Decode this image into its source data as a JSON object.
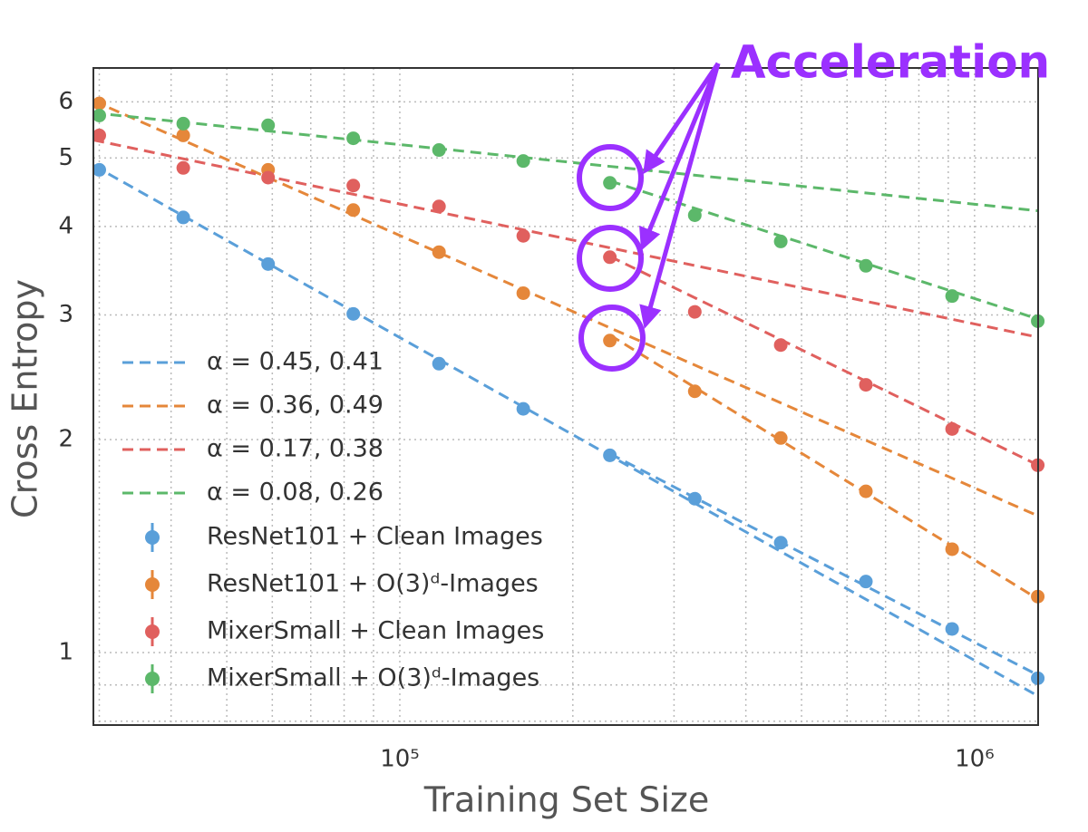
{
  "chart_data": {
    "type": "scatter",
    "xlabel": "Training Set Size",
    "ylabel": "Cross Entropy",
    "xscale": "log",
    "yscale": "log",
    "grid": true,
    "xlim": [
      29300,
      1290000
    ],
    "ylim": [
      0.79,
      6.7
    ],
    "xticks": [
      {
        "value": 100000,
        "label": "10⁵"
      },
      {
        "value": 1000000,
        "label": "10⁶"
      }
    ],
    "xminor": [
      30000,
      40000,
      50000,
      60000,
      70000,
      80000,
      90000,
      200000,
      300000,
      400000,
      500000,
      600000,
      700000,
      800000,
      900000
    ],
    "yticks": [
      1,
      2,
      3,
      4,
      5,
      6
    ],
    "yminor": [
      0.8,
      0.9
    ],
    "x": [
      30000,
      42000,
      59000,
      83000,
      117000,
      164000,
      232000,
      326000,
      460000,
      647000,
      914000,
      1288000
    ],
    "series": [
      {
        "name": "ResNet101 + Clean Images",
        "color": "#5a9fd9",
        "values": [
          4.81,
          4.12,
          3.54,
          3.01,
          2.56,
          2.21,
          1.9,
          1.65,
          1.43,
          1.26,
          1.08,
          0.92
        ]
      },
      {
        "name": "ResNet101 + O(3)ᵈ-Images",
        "color": "#e5873a",
        "values": [
          5.97,
          5.38,
          4.81,
          4.22,
          3.68,
          3.22,
          2.76,
          2.34,
          2.01,
          1.69,
          1.4,
          1.2
        ]
      },
      {
        "name": "MixerSmall + Clean Images",
        "color": "#e0605e",
        "values": [
          5.38,
          4.84,
          4.69,
          4.57,
          4.27,
          3.88,
          3.62,
          3.03,
          2.72,
          2.39,
          2.07,
          1.84
        ]
      },
      {
        "name": "MixerSmall + O(3)ᵈ-Images",
        "color": "#5cb86a",
        "values": [
          5.74,
          5.59,
          5.56,
          5.33,
          5.13,
          4.95,
          4.61,
          4.15,
          3.81,
          3.52,
          3.19,
          2.94
        ]
      }
    ],
    "fits": [
      {
        "label": "α = 0.45, 0.41",
        "color": "#5a9fd9",
        "lines": [
          {
            "x": [
              29300,
              1290000
            ],
            "y": [
              4.88,
              0.868
            ]
          },
          {
            "x": [
              232000,
              1290000
            ],
            "y": [
              1.91,
              0.929
            ]
          }
        ]
      },
      {
        "label": "α = 0.36, 0.49",
        "color": "#e5873a",
        "lines": [
          {
            "x": [
              29300,
              1290000
            ],
            "y": [
              6.02,
              1.56
            ]
          },
          {
            "x": [
              232000,
              1290000
            ],
            "y": [
              2.81,
              1.19
            ]
          }
        ]
      },
      {
        "label": "α = 0.17, 0.38",
        "color": "#e0605e",
        "lines": [
          {
            "x": [
              29300,
              1290000
            ],
            "y": [
              5.3,
              2.79
            ]
          },
          {
            "x": [
              232000,
              1290000
            ],
            "y": [
              3.63,
              1.84
            ]
          }
        ]
      },
      {
        "label": "α = 0.08, 0.26",
        "color": "#5cb86a",
        "lines": [
          {
            "x": [
              29300,
              1290000
            ],
            "y": [
              5.79,
              4.21
            ]
          },
          {
            "x": [
              232000,
              1290000
            ],
            "y": [
              4.64,
              2.96
            ]
          }
        ]
      }
    ],
    "annotation": "Acceleration"
  }
}
